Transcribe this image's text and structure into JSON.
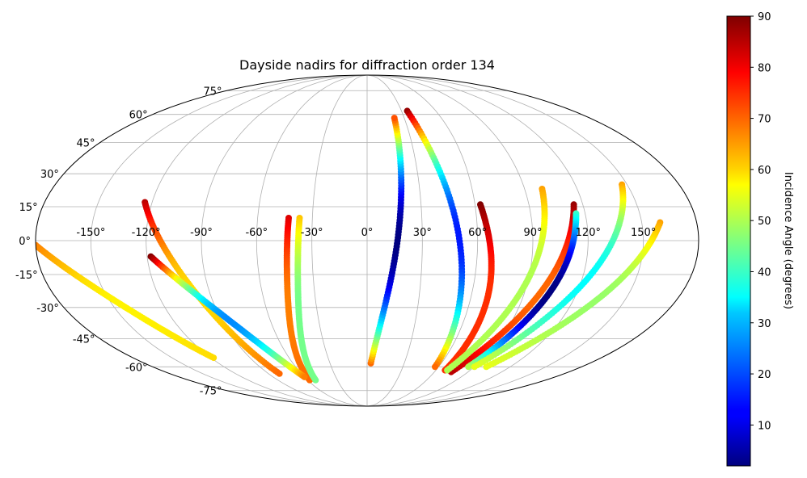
{
  "chart_data": {
    "type": "scatter",
    "projection": "mollweide",
    "title": "Dayside nadirs for diffraction order 134",
    "xlabel": "",
    "ylabel": "",
    "lon_ticks": [
      "-150°",
      "-120°",
      "-90°",
      "-60°",
      "-30°",
      "0°",
      "30°",
      "60°",
      "90°",
      "120°",
      "150°"
    ],
    "lon_tick_values": [
      -150,
      -120,
      -90,
      -60,
      -30,
      0,
      30,
      60,
      90,
      120,
      150
    ],
    "lat_ticks": [
      "75°",
      "60°",
      "45°",
      "30°",
      "15°",
      "0°",
      "-15°",
      "-30°",
      "-45°",
      "-60°",
      "-75°"
    ],
    "lat_tick_values": [
      75,
      60,
      45,
      30,
      15,
      0,
      -15,
      -30,
      -45,
      -60,
      -75
    ],
    "grid": true,
    "colormap": "jet",
    "colorbar": {
      "label": "Incidence Angle (degrees)",
      "range": [
        2,
        90
      ],
      "ticks": [
        "10",
        "20",
        "30",
        "40",
        "50",
        "60",
        "70",
        "80",
        "90"
      ],
      "tick_values": [
        10,
        20,
        30,
        40,
        50,
        60,
        70,
        80,
        90
      ],
      "placement": "right"
    },
    "tracks": [
      {
        "lon_start": 3,
        "lon_end": 22,
        "lat_start": -58,
        "lat_end": 58,
        "inc_start": 70,
        "inc_end": 72,
        "inc_min": 2
      },
      {
        "lon_start": 35,
        "lon_end": 57,
        "lat_start": 62,
        "lat_end": -60,
        "inc_start": 88,
        "inc_end": 70,
        "inc_min": 15
      },
      {
        "lon_start": -43,
        "lon_end": -58,
        "lat_start": 10,
        "lat_end": -68,
        "inc_start": 82,
        "inc_end": 70,
        "inc_min": 68
      },
      {
        "lon_start": -37,
        "lon_end": -52,
        "lat_start": 10,
        "lat_end": -68,
        "inc_start": 62,
        "inc_end": 45,
        "inc_min": 45
      },
      {
        "lon_start": 63,
        "lon_end": 68,
        "lat_start": 16,
        "lat_end": -62,
        "inc_start": 90,
        "inc_end": 75,
        "inc_min": 75
      },
      {
        "lon_start": 115,
        "lon_end": 75,
        "lat_start": 16,
        "lat_end": -63,
        "inc_start": 88,
        "inc_end": 85,
        "inc_min": 70
      },
      {
        "lon_start": 115,
        "lon_end": 85,
        "lat_start": 12,
        "lat_end": -60,
        "inc_start": 40,
        "inc_end": 50,
        "inc_min": 2
      },
      {
        "lon_start": 147,
        "lon_end": 90,
        "lat_start": 25,
        "lat_end": -60,
        "inc_start": 65,
        "inc_end": 55,
        "inc_min": 35
      },
      {
        "lon_start": 160,
        "lon_end": 100,
        "lat_start": 8,
        "lat_end": -60,
        "inc_start": 65,
        "inc_end": 55,
        "inc_min": 48
      },
      {
        "lon_start": 100,
        "lon_end": 70,
        "lat_start": 23,
        "lat_end": -62,
        "inc_start": 65,
        "inc_end": 50,
        "inc_min": 50
      },
      {
        "lon_start": -124,
        "lon_end": -80,
        "lat_start": 17,
        "lat_end": -64,
        "inc_start": 85,
        "inc_end": 70,
        "inc_min": 60
      },
      {
        "lon_start": -118,
        "lon_end": -60,
        "lat_start": -7,
        "lat_end": -66,
        "inc_start": 90,
        "inc_end": 68,
        "inc_min": 25
      },
      {
        "lon_start": -180,
        "lon_end": -118,
        "lat_start": -2,
        "lat_end": -55,
        "inc_start": 68,
        "inc_end": 60,
        "inc_min": 58
      }
    ]
  }
}
